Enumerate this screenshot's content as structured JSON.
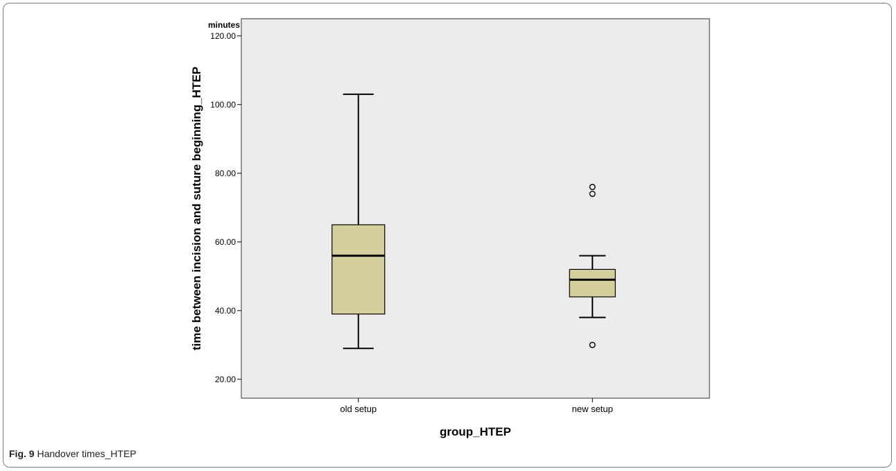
{
  "caption": {
    "label": "Fig. 9",
    "text": "Handover times_HTEP"
  },
  "colors": {
    "plot_background": "#ececec",
    "box_fill": "#d5d09b",
    "stroke": "#000000"
  },
  "chart_data": {
    "type": "boxplot",
    "title": "",
    "xlabel": "group_HTEP",
    "ylabel": "time between incision and suture beginning_HTEP",
    "y_unit": "minutes",
    "ylim": [
      14.5,
      125
    ],
    "y_ticks": [
      20,
      40,
      60,
      80,
      100,
      120
    ],
    "y_tick_labels": [
      "20.00",
      "40.00",
      "60.00",
      "80.00",
      "100.00",
      "120.00"
    ],
    "grid": false,
    "categories": [
      "old setup",
      "new setup"
    ],
    "boxes": [
      {
        "category": "old setup",
        "whisker_low": 29,
        "q1": 39,
        "median": 56,
        "q3": 65,
        "whisker_high": 103,
        "outliers": []
      },
      {
        "category": "new setup",
        "whisker_low": 38,
        "q1": 44,
        "median": 49,
        "q3": 52,
        "whisker_high": 56,
        "outliers": [
          30,
          74,
          76
        ]
      }
    ]
  }
}
